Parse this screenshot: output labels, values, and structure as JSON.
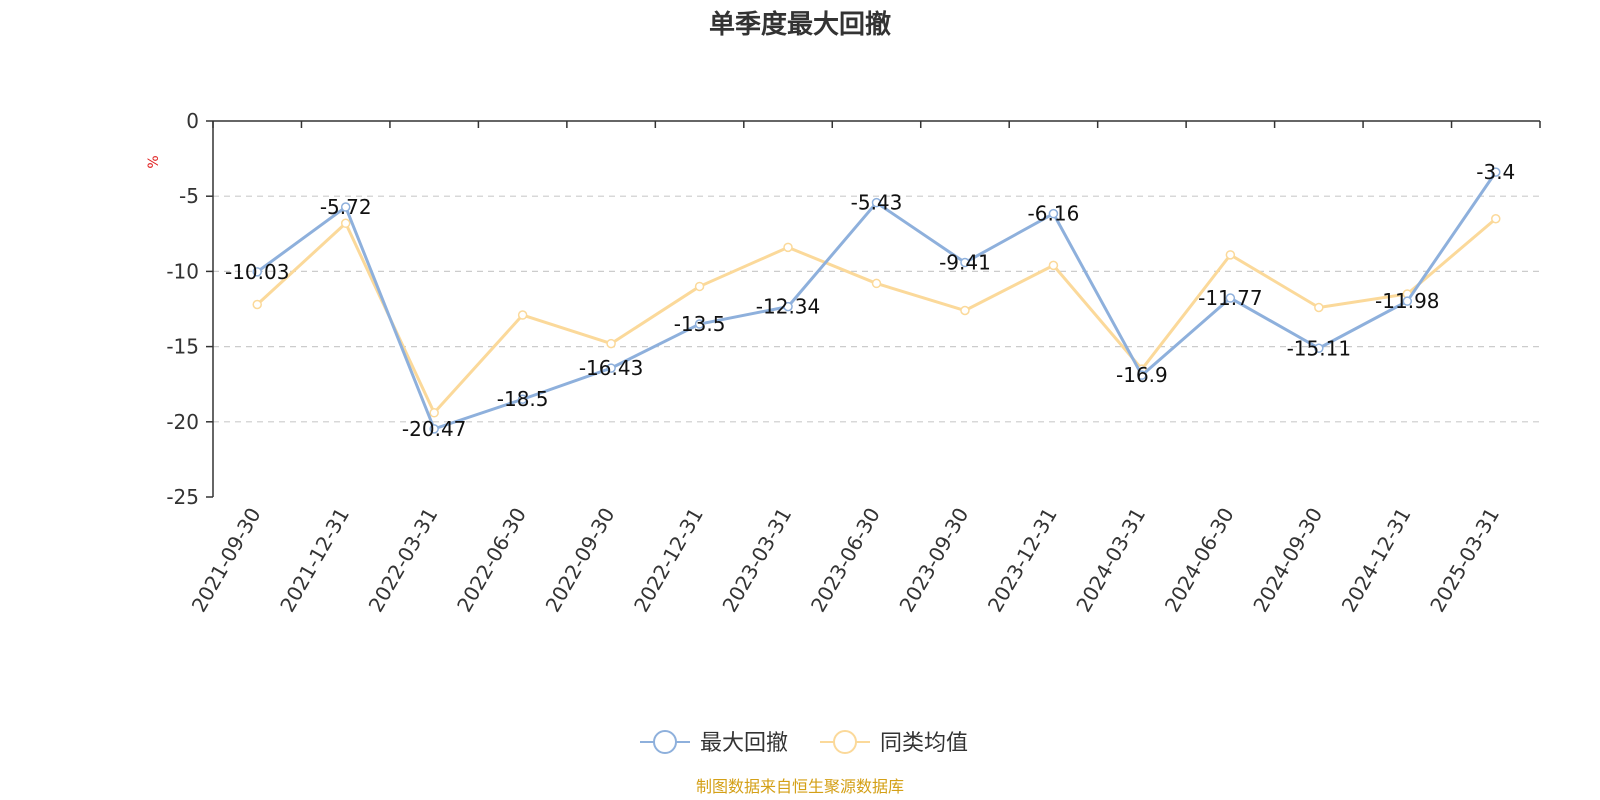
{
  "chart_data": {
    "type": "line",
    "title": "单季度最大回撤",
    "ylabel": "%",
    "categories": [
      "2021-09-30",
      "2021-12-31",
      "2022-03-31",
      "2022-06-30",
      "2022-09-30",
      "2022-12-31",
      "2023-03-31",
      "2023-06-30",
      "2023-09-30",
      "2023-12-31",
      "2024-03-31",
      "2024-06-30",
      "2024-09-30",
      "2024-12-31",
      "2025-03-31"
    ],
    "series": [
      {
        "name": "最大回撤",
        "color": "#8eb0dc",
        "labeled": true,
        "values": [
          -10.03,
          -5.72,
          -20.47,
          -18.5,
          -16.43,
          -13.5,
          -12.34,
          -5.43,
          -9.41,
          -6.16,
          -16.9,
          -11.77,
          -15.11,
          -11.98,
          -3.4
        ]
      },
      {
        "name": "同类均值",
        "color": "#fbd99a",
        "labeled": false,
        "values": [
          -12.2,
          -6.8,
          -19.4,
          -12.9,
          -14.8,
          -11.0,
          -8.4,
          -10.8,
          -12.6,
          -9.6,
          -16.5,
          -8.9,
          -12.4,
          -11.5,
          -6.5
        ]
      }
    ],
    "ylim": [
      -25,
      0
    ],
    "yticks": [
      0,
      -5,
      -10,
      -15,
      -20,
      -25
    ],
    "grid": true,
    "legend": "bottom-center"
  },
  "source": "制图数据来自恒生聚源数据库",
  "colors": {
    "axis": "#333333",
    "grid": "#cccccc",
    "unit": "#e02020",
    "source": "#d4a017"
  }
}
